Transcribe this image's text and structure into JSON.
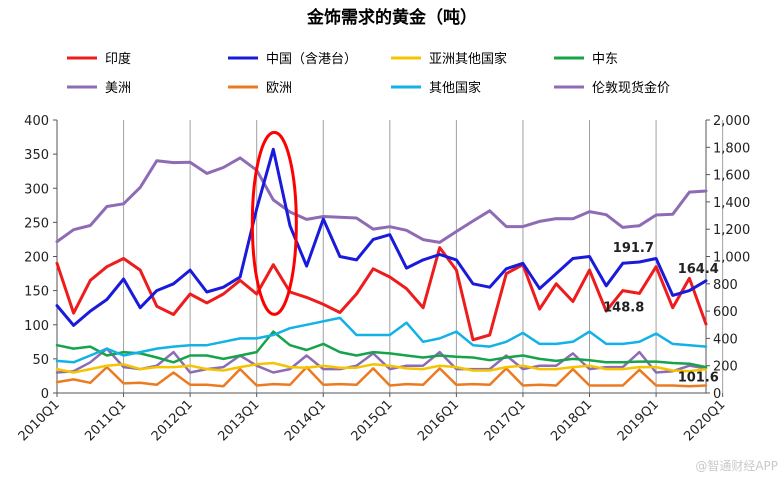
{
  "chart_data": {
    "type": "line",
    "title": "金饰需求的黄金（吨）",
    "colors": {
      "印度": "#ee1c1c",
      "中国（含港台）": "#1a1adb",
      "亚洲其他国家": "#f5c400",
      "中东": "#16a34a",
      "美洲": "#8e6bb5",
      "欧洲": "#ec7a21",
      "其他国家": "#12b1e6",
      "伦敦现货金价": "#8e6bb5",
      "circle": "#ff0000"
    },
    "legend": [
      "印度",
      "中国（含港台）",
      "亚洲其他国家",
      "中东",
      "美洲",
      "欧洲",
      "其他国家",
      "伦敦现货金价"
    ],
    "x_tick_labels": [
      "2010Q1",
      "2011Q1",
      "2012Q1",
      "2013Q1",
      "2014Q1",
      "2015Q1",
      "2016Q1",
      "2017Q1",
      "2018Q1",
      "2019Q1",
      "2020Q1"
    ],
    "y_left": {
      "min": 0,
      "max": 400,
      "ticks": [
        "0",
        "50",
        "100",
        "150",
        "200",
        "250",
        "300",
        "350",
        "400"
      ]
    },
    "y_right": {
      "min": 0,
      "max": 2000,
      "ticks": [
        "0",
        "200",
        "400",
        "600",
        "800",
        "1,000",
        "1,200",
        "1,400",
        "1,600",
        "1,800",
        "2,000"
      ]
    },
    "series": [
      {
        "name": "印度",
        "axis": "left",
        "values": [
          190,
          117,
          165,
          185,
          197,
          180,
          127,
          115,
          145,
          132,
          145,
          165,
          145,
          188,
          148,
          140,
          130,
          118,
          145,
          182,
          170,
          153,
          125,
          213,
          180,
          78,
          85,
          175,
          188,
          123,
          160,
          134,
          180,
          120,
          150,
          146,
          185,
          125,
          168,
          101
        ]
      },
      {
        "name": "中国（含港台）",
        "axis": "left",
        "values": [
          128,
          99,
          120,
          137,
          167,
          125,
          150,
          160,
          180,
          148,
          155,
          170,
          270,
          357,
          245,
          186,
          255,
          200,
          195,
          225,
          232,
          183,
          195,
          203,
          195,
          160,
          155,
          182,
          190,
          153,
          175,
          197,
          200,
          157,
          190,
          192,
          197,
          143,
          150,
          164.4
        ]
      },
      {
        "name": "亚洲其他国家",
        "axis": "left",
        "values": [
          35,
          30,
          35,
          40,
          42,
          35,
          38,
          38,
          40,
          35,
          33,
          38,
          42,
          44,
          38,
          37,
          40,
          37,
          37,
          42,
          40,
          36,
          35,
          40,
          38,
          33,
          33,
          38,
          40,
          35,
          35,
          38,
          40,
          35,
          35,
          38,
          38,
          33,
          32,
          35
        ]
      },
      {
        "name": "中东",
        "axis": "left",
        "values": [
          70,
          65,
          68,
          55,
          60,
          58,
          52,
          45,
          55,
          55,
          50,
          55,
          60,
          90,
          70,
          63,
          72,
          60,
          55,
          60,
          58,
          55,
          52,
          55,
          53,
          52,
          48,
          52,
          55,
          50,
          47,
          50,
          48,
          45,
          45,
          46,
          46,
          44,
          43,
          38
        ]
      },
      {
        "name": "美洲",
        "axis": "left",
        "values": [
          30,
          32,
          45,
          65,
          38,
          35,
          40,
          60,
          30,
          35,
          38,
          55,
          40,
          30,
          35,
          55,
          35,
          35,
          40,
          58,
          35,
          40,
          40,
          60,
          35,
          35,
          35,
          55,
          35,
          40,
          40,
          58,
          35,
          38,
          38,
          60,
          30,
          32,
          40,
          36
        ]
      },
      {
        "name": "欧洲",
        "axis": "left",
        "values": [
          16,
          20,
          15,
          38,
          14,
          15,
          12,
          30,
          12,
          12,
          10,
          35,
          11,
          13,
          12,
          38,
          12,
          13,
          12,
          36,
          11,
          13,
          12,
          36,
          12,
          13,
          12,
          36,
          11,
          12,
          11,
          35,
          11,
          11,
          11,
          34,
          11,
          11,
          10,
          11
        ]
      },
      {
        "name": "其他国家",
        "axis": "left",
        "values": [
          47,
          45,
          55,
          65,
          55,
          60,
          65,
          68,
          70,
          70,
          75,
          80,
          80,
          85,
          95,
          100,
          105,
          110,
          85,
          85,
          85,
          103,
          75,
          80,
          90,
          70,
          68,
          75,
          88,
          72,
          72,
          75,
          90,
          72,
          72,
          75,
          87,
          72,
          70,
          68
        ]
      },
      {
        "name": "伦敦现货金价",
        "axis": "right",
        "values": [
          1109,
          1196,
          1227,
          1366,
          1386,
          1506,
          1702,
          1688,
          1691,
          1609,
          1652,
          1722,
          1632,
          1415,
          1326,
          1272,
          1293,
          1288,
          1282,
          1201,
          1218,
          1192,
          1124,
          1103,
          1183,
          1260,
          1335,
          1219,
          1219,
          1257,
          1278,
          1276,
          1329,
          1306,
          1213,
          1226,
          1304,
          1309,
          1472,
          1480
        ]
      }
    ],
    "data_labels": [
      "191.7",
      "164.4",
      "148.8",
      "101.6"
    ],
    "annotation": "red ellipse highlighting the 2013 spike of China demand"
  },
  "watermark": "@智通财经APP"
}
